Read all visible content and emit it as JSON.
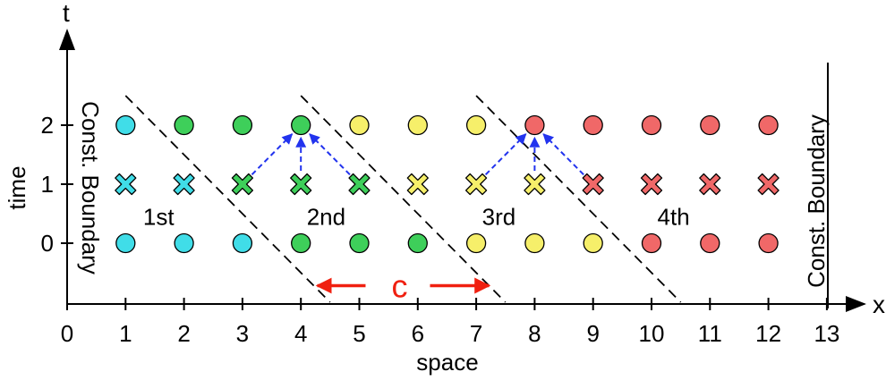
{
  "axes": {
    "x_arrow_label": "x",
    "t_arrow_label": "t",
    "x_title": "space",
    "y_title": "time",
    "x_ticks": [
      "0",
      "1",
      "2",
      "3",
      "4",
      "5",
      "6",
      "7",
      "8",
      "9",
      "10",
      "11",
      "12",
      "13"
    ],
    "y_ticks": [
      "0",
      "1",
      "2"
    ]
  },
  "boundaries": {
    "left": "Const. Boundary",
    "right": "Const. Boundary"
  },
  "regions": [
    "1st",
    "2nd",
    "3rd",
    "4th"
  ],
  "wave_label": "c",
  "colors": {
    "cyan": "#40dde8",
    "green": "#3ecf5a",
    "yellow": "#f6ef6a",
    "red": "#f06868",
    "dependency_arrow": "#2233ee",
    "wave_arrow": "#f02010",
    "characteristic_line": "#000000"
  },
  "chart_data": {
    "type": "scatter",
    "xlim": [
      0,
      13
    ],
    "ylim": [
      0,
      2
    ],
    "series": [
      {
        "marker": "circle",
        "t": 0,
        "x": [
          1,
          2,
          3,
          4,
          5,
          6,
          7,
          8,
          9,
          10,
          11,
          12
        ],
        "colors": [
          "cyan",
          "cyan",
          "cyan",
          "green",
          "green",
          "green",
          "yellow",
          "yellow",
          "yellow",
          "red",
          "red",
          "red"
        ]
      },
      {
        "marker": "cross",
        "t": 1,
        "x": [
          1,
          2,
          3,
          4,
          5,
          6,
          7,
          8,
          9,
          10,
          11,
          12
        ],
        "colors": [
          "cyan",
          "cyan",
          "green",
          "green",
          "green",
          "yellow",
          "yellow",
          "yellow",
          "red",
          "red",
          "red",
          "red"
        ]
      },
      {
        "marker": "circle",
        "t": 2,
        "x": [
          1,
          2,
          3,
          4,
          5,
          6,
          7,
          8,
          9,
          10,
          11,
          12
        ],
        "colors": [
          "cyan",
          "green",
          "green",
          "green",
          "yellow",
          "yellow",
          "yellow",
          "red",
          "red",
          "red",
          "red",
          "red"
        ]
      }
    ],
    "dashed_lines": [
      {
        "x1": 1,
        "t1": 2.5,
        "x2": 4.5,
        "t2": -1
      },
      {
        "x1": 4,
        "t1": 2.5,
        "x2": 7.5,
        "t2": -1
      },
      {
        "x1": 7,
        "t1": 2.5,
        "x2": 10.5,
        "t2": -1
      }
    ],
    "dependency_arrows": [
      {
        "from": [
          3,
          1
        ],
        "to": [
          4,
          2
        ]
      },
      {
        "from": [
          4,
          1
        ],
        "to": [
          4,
          2
        ]
      },
      {
        "from": [
          5,
          1
        ],
        "to": [
          4,
          2
        ]
      },
      {
        "from": [
          7,
          1
        ],
        "to": [
          8,
          2
        ]
      },
      {
        "from": [
          8,
          1
        ],
        "to": [
          8,
          2
        ]
      },
      {
        "from": [
          9,
          1
        ],
        "to": [
          8,
          2
        ]
      }
    ],
    "region_label_positions": [
      {
        "x": 1.3,
        "t": 0.45
      },
      {
        "x": 4.1,
        "t": 0.45
      },
      {
        "x": 7.1,
        "t": 0.45
      },
      {
        "x": 10.1,
        "t": 0.45
      }
    ],
    "wave_arrow": {
      "x_from": 4.25,
      "x_to": 7.25,
      "t": -0.72
    }
  }
}
